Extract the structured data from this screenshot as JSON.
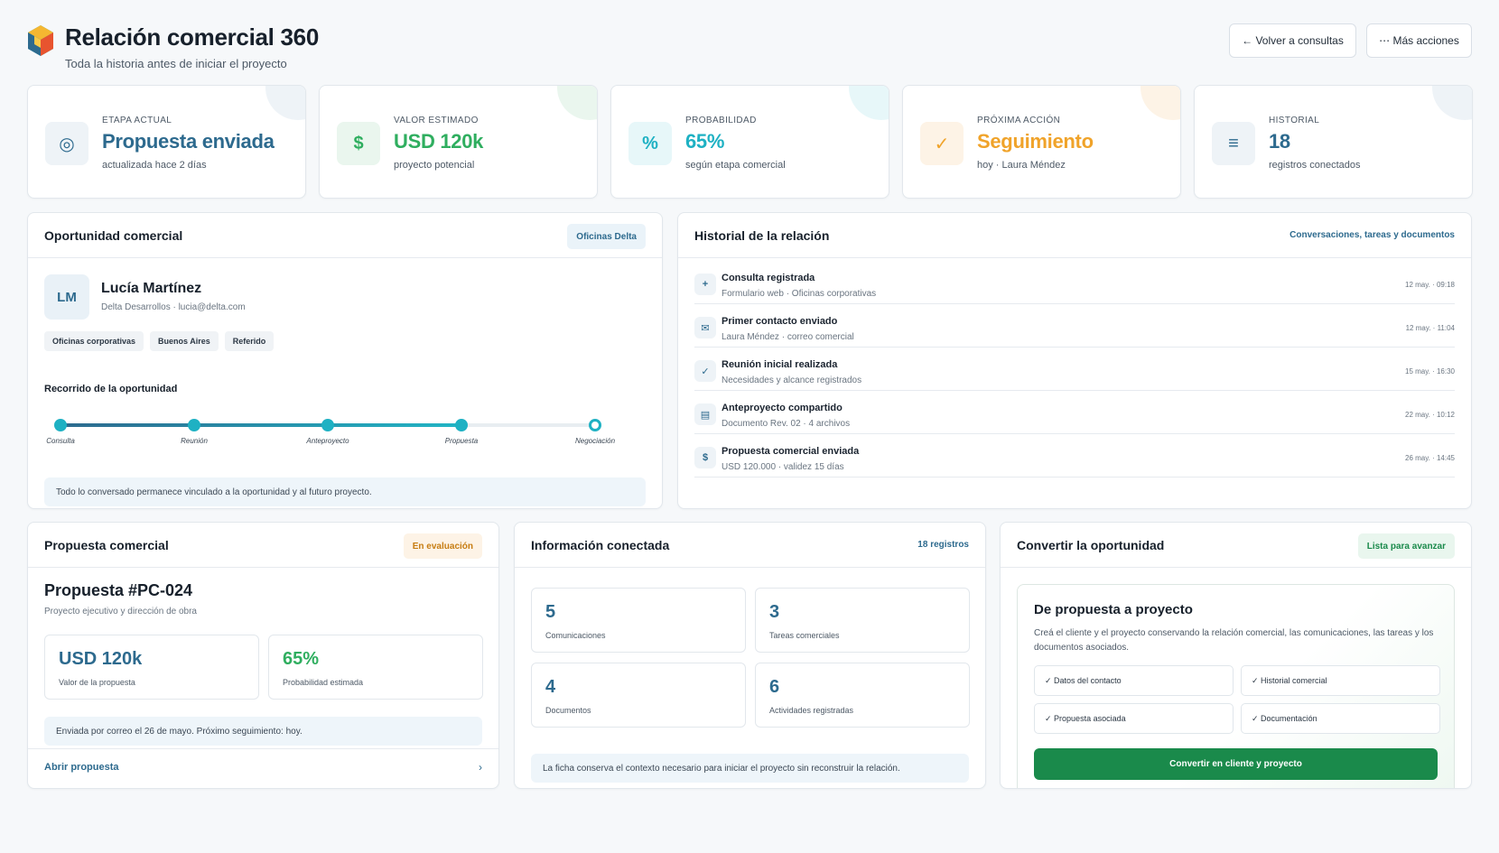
{
  "header": {
    "title": "Relación comercial 360",
    "subtitle": "Toda la historia antes de iniciar el proyecto",
    "back_button": "← Volver a consultas",
    "more_button": "⋯ Más acciones"
  },
  "kpis": [
    {
      "label": "ETAPA ACTUAL",
      "value": "Propuesta enviada",
      "sub": "actualizada hace 2 días",
      "icon": "◎",
      "icon_name": "target-icon",
      "color": "#2d6a8e",
      "icon_bg": "#eef3f7",
      "blob": "#eef3f7"
    },
    {
      "label": "VALOR ESTIMADO",
      "value": "USD 120k",
      "sub": "proyecto potencial",
      "icon": "$",
      "icon_name": "dollar-icon",
      "color": "#2fae5f",
      "icon_bg": "#eaf6ee",
      "blob": "#eaf6ee"
    },
    {
      "label": "PROBABILIDAD",
      "value": "65%",
      "sub": "según etapa comercial",
      "icon": "%",
      "icon_name": "percent-icon",
      "color": "#1eb1c3",
      "icon_bg": "#e7f7f9",
      "blob": "#e7f7f9"
    },
    {
      "label": "PRÓXIMA ACCIÓN",
      "value": "Seguimiento",
      "sub": "hoy · Laura Méndez",
      "icon": "✓",
      "icon_name": "check-icon",
      "color": "#f0a32a",
      "icon_bg": "#fdf3e6",
      "blob": "#fdf3e6"
    },
    {
      "label": "HISTORIAL",
      "value": "18",
      "sub": "registros conectados",
      "icon": "≡",
      "icon_name": "list-icon",
      "color": "#2d6a8e",
      "icon_bg": "#eef3f7",
      "blob": "#eef3f7"
    }
  ],
  "opportunity": {
    "title": "Oportunidad comercial",
    "badge": "Oficinas Delta",
    "initials": "LM",
    "name": "Lucía Martínez",
    "meta": "Delta Desarrollos · lucia@delta.com",
    "tags": [
      "Oficinas corporativas",
      "Buenos Aires",
      "Referido"
    ],
    "journey_title": "Recorrido de la oportunidad",
    "progress": 0.75,
    "steps": [
      {
        "label": "Consulta",
        "done": true
      },
      {
        "label": "Reunión",
        "done": true
      },
      {
        "label": "Anteproyecto",
        "done": true
      },
      {
        "label": "Propuesta",
        "done": true
      },
      {
        "label": "Negociación",
        "done": false
      }
    ],
    "note": "Todo lo conversado permanece vinculado a la oportunidad y al futuro proyecto."
  },
  "history": {
    "title": "Historial de la relación",
    "link": "Conversaciones, tareas y documentos",
    "items": [
      {
        "icon": "+",
        "icon_name": "plus-icon",
        "title": "Consulta registrada",
        "sub": "Formulario web · Oficinas corporativas",
        "time": "12 may. · 09:18"
      },
      {
        "icon": "✉",
        "icon_name": "mail-icon",
        "title": "Primer contacto enviado",
        "sub": "Laura Méndez · correo comercial",
        "time": "12 may. · 11:04"
      },
      {
        "icon": "✓",
        "icon_name": "check-icon",
        "title": "Reunión inicial realizada",
        "sub": "Necesidades y alcance registrados",
        "time": "15 may. · 16:30"
      },
      {
        "icon": "▤",
        "icon_name": "document-icon",
        "title": "Anteproyecto compartido",
        "sub": "Documento Rev. 02 · 4 archivos",
        "time": "22 may. · 10:12"
      },
      {
        "icon": "$",
        "icon_name": "dollar-icon",
        "title": "Propuesta comercial enviada",
        "sub": "USD 120.000 · validez 15 días",
        "time": "26 may. · 14:45"
      }
    ]
  },
  "proposal": {
    "title": "Propuesta comercial",
    "badge": "En evaluación",
    "name": "Propuesta #PC-024",
    "sub": "Proyecto ejecutivo y dirección de obra",
    "stats": [
      {
        "value": "USD 120k",
        "label": "Valor de la propuesta",
        "color": "#2d6a8e"
      },
      {
        "value": "65%",
        "label": "Probabilidad estimada",
        "color": "#2fae5f"
      }
    ],
    "note": "Enviada por correo el 26 de mayo. Próximo seguimiento: hoy.",
    "link": "Abrir propuesta",
    "chevron": "›"
  },
  "connected": {
    "title": "Información conectada",
    "badge": "18 registros",
    "boxes": [
      {
        "value": "5",
        "label": "Comunicaciones"
      },
      {
        "value": "3",
        "label": "Tareas comerciales"
      },
      {
        "value": "4",
        "label": "Documentos"
      },
      {
        "value": "6",
        "label": "Actividades registradas"
      }
    ],
    "note": "La ficha conserva el contexto necesario para iniciar el proyecto sin reconstruir la relación."
  },
  "convert": {
    "title": "Convertir la oportunidad",
    "badge": "Lista para avanzar",
    "card_title": "De propuesta a proyecto",
    "card_desc": "Creá el cliente y el proyecto conservando la relación comercial, las comunicaciones, las tareas y los documentos asociados.",
    "checks": [
      "✓ Datos del contacto",
      "✓ Historial comercial",
      "✓ Propuesta asociada",
      "✓ Documentación"
    ],
    "button": "Convertir en cliente y proyecto"
  }
}
